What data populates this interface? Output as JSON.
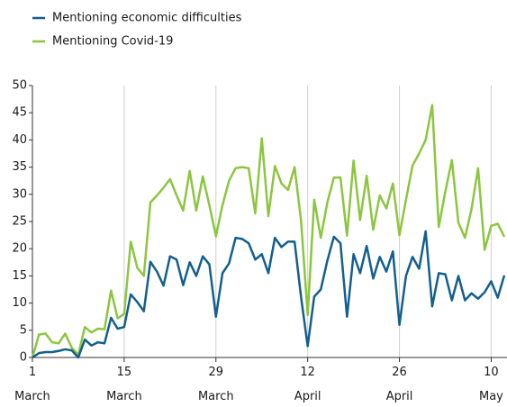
{
  "chart_data": {
    "type": "line",
    "categories": [
      "1 March",
      null,
      null,
      null,
      null,
      null,
      null,
      null,
      null,
      null,
      null,
      null,
      null,
      null,
      "15 March",
      null,
      null,
      null,
      null,
      null,
      null,
      null,
      null,
      null,
      null,
      null,
      null,
      null,
      "29 March",
      null,
      null,
      null,
      null,
      null,
      null,
      null,
      null,
      null,
      null,
      null,
      null,
      null,
      "12 April",
      null,
      null,
      null,
      null,
      null,
      null,
      null,
      null,
      null,
      null,
      null,
      null,
      null,
      "26 April",
      null,
      null,
      null,
      null,
      null,
      null,
      null,
      null,
      null,
      null,
      null,
      null,
      null,
      "10 May",
      null,
      null
    ],
    "series": [
      {
        "name": "Mentioning economic difficulties",
        "color": "#135f8d",
        "values": [
          0,
          0.8,
          1,
          1,
          1.2,
          1.5,
          1.3,
          0,
          3.3,
          2.2,
          2.8,
          2.6,
          7.3,
          5.3,
          5.6,
          11.6,
          10.2,
          8.5,
          17.6,
          15.8,
          13.2,
          18.6,
          18,
          13.3,
          17.5,
          15,
          18.6,
          17.1,
          7.5,
          15.5,
          17.3,
          22,
          21.8,
          21,
          18,
          19,
          15.5,
          22,
          20.3,
          21.3,
          21.3,
          11,
          2.1,
          11.2,
          12.5,
          17.8,
          22.2,
          21,
          7.5,
          19,
          15.5,
          20.5,
          14.5,
          18.5,
          15.8,
          19.5,
          6,
          15,
          18.5,
          16.3,
          23.2,
          9.4,
          15.5,
          15.3,
          10.5,
          15,
          10.5,
          11.8,
          10.8,
          12,
          14,
          11,
          15.1
        ]
      },
      {
        "name": "Mentioning Covid-19",
        "color": "#8cc63f",
        "values": [
          0,
          4.2,
          4.4,
          2.8,
          2.6,
          4.4,
          1.8,
          0.5,
          5.6,
          4.6,
          5.3,
          5.2,
          12.3,
          7.2,
          8,
          21.3,
          16.5,
          15,
          28.5,
          29.8,
          31.2,
          32.8,
          29.8,
          27,
          34.3,
          27,
          33.3,
          28,
          22.3,
          28,
          32.5,
          34.8,
          35,
          34.8,
          26.5,
          40.3,
          26,
          35.2,
          32,
          30.8,
          35,
          25,
          7.8,
          29,
          22,
          28.5,
          33.1,
          33.1,
          22.4,
          36.2,
          25.3,
          33.4,
          23.5,
          29.8,
          27.4,
          32,
          22.5,
          29,
          35.3,
          37.5,
          40,
          46.4,
          24,
          30.5,
          36.3,
          24.8,
          22,
          27.3,
          34.8,
          19.8,
          24.2,
          24.6,
          22.2
        ]
      }
    ],
    "ylim": [
      0,
      50
    ],
    "yticks": [
      0,
      5,
      10,
      15,
      20,
      25,
      30,
      35,
      40,
      45,
      50
    ],
    "grid": true
  }
}
